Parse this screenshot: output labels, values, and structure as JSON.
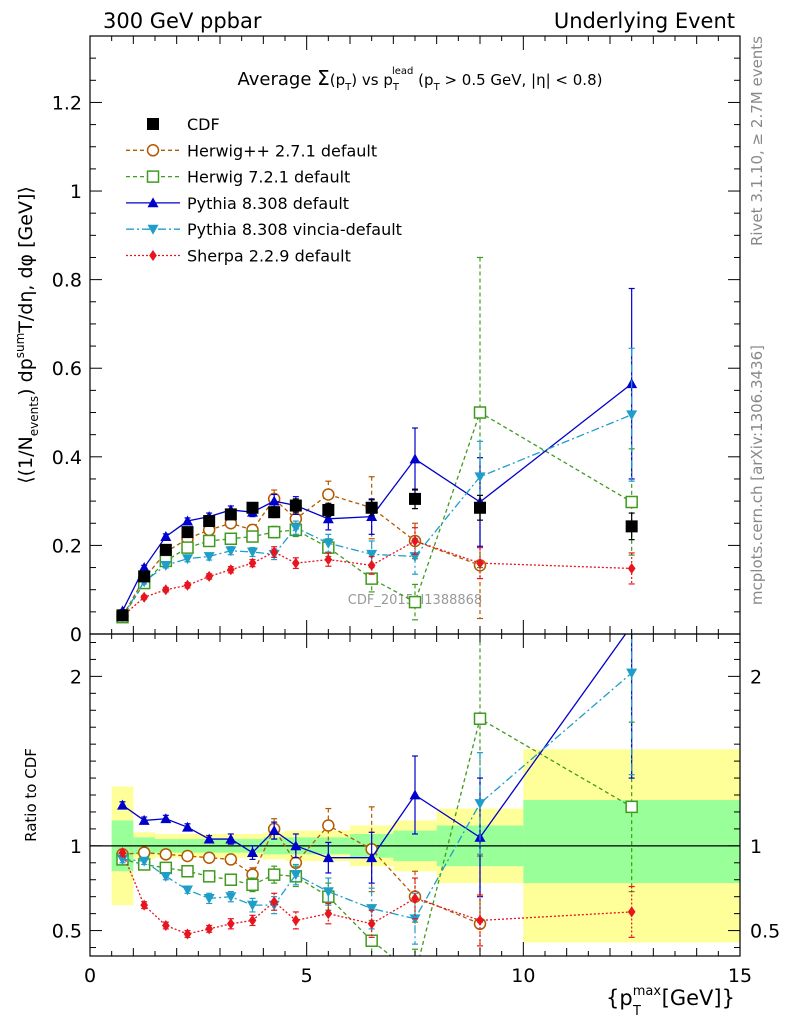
{
  "header": {
    "left": "300 GeV ppbar",
    "right": "Underlying Event"
  },
  "side_labels": {
    "rivet": "Rivet 3.1.10, ≥ 2.7M events",
    "mcplots": "mcplots.cern.ch [arXiv:1306.3436]"
  },
  "chart_data": [
    {
      "type": "line",
      "title_parts": {
        "a": "Average ",
        "sigma": "Σ",
        "b": "(p",
        "b_sub": "T",
        "c": ") vs p",
        "c_sub": "T",
        "c_sup": "lead",
        "d": " (p",
        "d_sub": "T",
        "e": " > 0.5 GeV, |η| < 0.8)"
      },
      "ylabel_parts": {
        "a": "⟨(1/N",
        "a_sub": "events",
        "b": ") dp",
        "b_sup": "sum",
        "c": "T",
        "d": "/dη, dφ [GeV]⟩"
      },
      "xlim": [
        0,
        15
      ],
      "ylim": [
        0,
        1.35
      ],
      "yticks": [
        0,
        0.2,
        0.4,
        0.6,
        0.8,
        1,
        1.2
      ],
      "ytick_labels": [
        "0",
        "0.2",
        "0.4",
        "0.6",
        "0.8",
        "1",
        "1.2"
      ],
      "watermark": "CDF_2015_I1388868",
      "series": [
        {
          "name": "CDF",
          "color": "#000000",
          "marker": "square-filled",
          "x": [
            0.75,
            1.25,
            1.75,
            2.25,
            2.75,
            3.25,
            3.75,
            4.25,
            4.75,
            5.5,
            6.5,
            7.5,
            9,
            12.5
          ],
          "y": [
            0.042,
            0.13,
            0.19,
            0.23,
            0.255,
            0.27,
            0.285,
            0.275,
            0.29,
            0.28,
            0.285,
            0.305,
            0.285,
            0.243
          ],
          "err": [
            0.004,
            0.006,
            0.007,
            0.008,
            0.009,
            0.01,
            0.011,
            0.012,
            0.015,
            0.015,
            0.018,
            0.022,
            0.028,
            0.03
          ]
        },
        {
          "name": "Herwig++ 2.7.1 default",
          "color": "#b35900",
          "marker": "circle-open",
          "dash": "4,3",
          "x": [
            0.75,
            1.25,
            1.75,
            2.25,
            2.75,
            3.25,
            3.75,
            4.25,
            4.75,
            5.5,
            6.5,
            7.5,
            9
          ],
          "y": [
            0.04,
            0.125,
            0.185,
            0.215,
            0.235,
            0.25,
            0.235,
            0.305,
            0.26,
            0.315,
            0.285,
            0.21,
            0.155
          ],
          "err": [
            0.003,
            0.005,
            0.006,
            0.007,
            0.008,
            0.01,
            0.012,
            0.02,
            0.025,
            0.03,
            0.07,
            0.04,
            0.12
          ]
        },
        {
          "name": "Herwig 7.2.1 default",
          "color": "#3f9b1f",
          "marker": "square-open",
          "dash": "4,3",
          "x": [
            0.75,
            1.25,
            1.75,
            2.25,
            2.75,
            3.25,
            3.75,
            4.25,
            4.75,
            5.5,
            6.5,
            7.5,
            9,
            12.5
          ],
          "y": [
            0.038,
            0.115,
            0.165,
            0.195,
            0.21,
            0.215,
            0.22,
            0.23,
            0.235,
            0.195,
            0.125,
            0.072,
            0.5,
            0.298
          ],
          "err": [
            0.003,
            0.005,
            0.006,
            0.007,
            0.008,
            0.009,
            0.011,
            0.013,
            0.015,
            0.02,
            0.03,
            0.04,
            0.35,
            0.12
          ]
        },
        {
          "name": "Pythia 8.308 default",
          "color": "#0000cc",
          "marker": "triangle-up-filled",
          "dash": "",
          "x": [
            0.75,
            1.25,
            1.75,
            2.25,
            2.75,
            3.25,
            3.75,
            4.25,
            4.75,
            5.5,
            6.5,
            7.5,
            9,
            12.5
          ],
          "y": [
            0.052,
            0.15,
            0.22,
            0.255,
            0.265,
            0.28,
            0.275,
            0.3,
            0.29,
            0.26,
            0.265,
            0.395,
            0.298,
            0.565
          ],
          "err": [
            0.003,
            0.005,
            0.006,
            0.007,
            0.008,
            0.009,
            0.01,
            0.015,
            0.02,
            0.025,
            0.04,
            0.07,
            0.1,
            0.215
          ]
        },
        {
          "name": "Pythia 8.308 vincia-default",
          "color": "#1e9ec8",
          "marker": "triangle-down-filled",
          "dash": "8,3,2,3",
          "x": [
            0.75,
            1.25,
            1.75,
            2.25,
            2.75,
            3.25,
            3.75,
            4.25,
            4.75,
            5.5,
            6.5,
            7.5,
            9,
            12.5
          ],
          "y": [
            0.04,
            0.118,
            0.155,
            0.17,
            0.175,
            0.188,
            0.185,
            0.18,
            0.24,
            0.205,
            0.18,
            0.175,
            0.355,
            0.495
          ],
          "err": [
            0.003,
            0.005,
            0.006,
            0.007,
            0.008,
            0.009,
            0.01,
            0.012,
            0.015,
            0.02,
            0.03,
            0.04,
            0.08,
            0.15
          ]
        },
        {
          "name": "Sherpa 2.2.9 default",
          "color": "#e8141e",
          "marker": "diamond-filled",
          "dash": "2,2",
          "x": [
            0.75,
            1.25,
            1.75,
            2.25,
            2.75,
            3.25,
            3.75,
            4.25,
            4.75,
            5.5,
            6.5,
            7.5,
            9,
            12.5
          ],
          "y": [
            0.04,
            0.083,
            0.1,
            0.11,
            0.13,
            0.145,
            0.16,
            0.185,
            0.16,
            0.168,
            0.155,
            0.21,
            0.16,
            0.148
          ],
          "err": [
            0.003,
            0.004,
            0.005,
            0.006,
            0.006,
            0.007,
            0.008,
            0.012,
            0.012,
            0.015,
            0.02,
            0.03,
            0.035,
            0.035
          ]
        }
      ]
    },
    {
      "type": "line",
      "ylabel": "Ratio to CDF",
      "xlabel_parts": {
        "a": "p",
        "a_sup": "max",
        "a_sub": "T",
        "b": " [GeV]"
      },
      "xlim": [
        0,
        15
      ],
      "ylim": [
        0.35,
        2.25
      ],
      "xticks": [
        0,
        5,
        10,
        15
      ],
      "xtick_labels": [
        "0",
        "5",
        "10",
        "15"
      ],
      "yticks": [
        0.5,
        1,
        2
      ],
      "ytick_labels": [
        "0.5",
        "1",
        "2"
      ],
      "bands": {
        "edges": [
          0.5,
          1,
          1.5,
          2,
          2.5,
          3,
          3.5,
          4,
          4.5,
          5,
          6,
          7,
          8,
          10,
          15
        ],
        "yellow_lo": [
          0.65,
          0.92,
          0.93,
          0.93,
          0.93,
          0.93,
          0.93,
          0.92,
          0.91,
          0.91,
          0.88,
          0.85,
          0.78,
          0.43
        ],
        "yellow_hi": [
          1.35,
          1.08,
          1.07,
          1.07,
          1.07,
          1.07,
          1.07,
          1.08,
          1.09,
          1.09,
          1.12,
          1.15,
          1.22,
          1.57
        ],
        "green_lo": [
          0.85,
          0.95,
          0.96,
          0.96,
          0.96,
          0.96,
          0.96,
          0.95,
          0.95,
          0.95,
          0.93,
          0.91,
          0.88,
          0.78
        ],
        "green_hi": [
          1.15,
          1.05,
          1.04,
          1.04,
          1.04,
          1.04,
          1.04,
          1.05,
          1.05,
          1.05,
          1.07,
          1.09,
          1.12,
          1.27
        ]
      },
      "series": [
        {
          "name": "Herwig++ 2.7.1 default",
          "color": "#b35900",
          "marker": "circle-open",
          "dash": "4,3",
          "x": [
            0.75,
            1.25,
            1.75,
            2.25,
            2.75,
            3.25,
            3.75,
            4.25,
            4.75,
            5.5,
            6.5,
            7.5,
            9
          ],
          "y": [
            0.95,
            0.96,
            0.95,
            0.94,
            0.93,
            0.92,
            0.83,
            1.1,
            0.9,
            1.12,
            0.98,
            0.7,
            0.54
          ],
          "err": [
            0.02,
            0.02,
            0.02,
            0.02,
            0.02,
            0.03,
            0.04,
            0.06,
            0.08,
            0.1,
            0.25,
            0.15,
            0.4
          ]
        },
        {
          "name": "Herwig 7.2.1 default",
          "color": "#3f9b1f",
          "marker": "square-open",
          "dash": "4,3",
          "x": [
            0.75,
            1.25,
            1.75,
            2.25,
            2.75,
            3.25,
            3.75,
            4.25,
            4.75,
            5.5,
            6.5,
            7.5,
            9,
            12.5
          ],
          "y": [
            0.92,
            0.89,
            0.87,
            0.85,
            0.82,
            0.8,
            0.77,
            0.83,
            0.82,
            0.7,
            0.44,
            0.24,
            1.75,
            1.23
          ],
          "err": [
            0.02,
            0.02,
            0.02,
            0.02,
            0.02,
            0.03,
            0.04,
            0.05,
            0.06,
            0.08,
            0.12,
            0.15,
            1.2,
            0.5
          ]
        },
        {
          "name": "Pythia 8.308 default",
          "color": "#0000cc",
          "marker": "triangle-up-filled",
          "dash": "",
          "x": [
            0.75,
            1.25,
            1.75,
            2.25,
            2.75,
            3.25,
            3.75,
            4.25,
            4.75,
            5.5,
            6.5,
            7.5,
            9,
            12.5
          ],
          "y": [
            1.24,
            1.15,
            1.16,
            1.11,
            1.04,
            1.04,
            0.96,
            1.09,
            1.0,
            0.93,
            0.93,
            1.3,
            1.05,
            2.3
          ],
          "err": [
            0.02,
            0.02,
            0.02,
            0.02,
            0.02,
            0.03,
            0.04,
            0.05,
            0.07,
            0.09,
            0.15,
            0.23,
            0.35,
            0.9
          ]
        },
        {
          "name": "Pythia 8.308 vincia-default",
          "color": "#1e9ec8",
          "marker": "triangle-down-filled",
          "dash": "8,3,2,3",
          "x": [
            0.75,
            1.25,
            1.75,
            2.25,
            2.75,
            3.25,
            3.75,
            4.25,
            4.75,
            5.5,
            6.5,
            7.5,
            9,
            12.5
          ],
          "y": [
            0.92,
            0.91,
            0.82,
            0.74,
            0.69,
            0.7,
            0.65,
            0.65,
            0.83,
            0.73,
            0.63,
            0.57,
            1.25,
            2.02
          ],
          "err": [
            0.02,
            0.02,
            0.02,
            0.02,
            0.03,
            0.03,
            0.04,
            0.05,
            0.06,
            0.08,
            0.12,
            0.15,
            0.3,
            0.6
          ]
        },
        {
          "name": "Sherpa 2.2.9 default",
          "color": "#e8141e",
          "marker": "diamond-filled",
          "dash": "2,2",
          "x": [
            0.75,
            1.25,
            1.75,
            2.25,
            2.75,
            3.25,
            3.75,
            4.25,
            4.75,
            5.5,
            6.5,
            7.5,
            9,
            12.5
          ],
          "y": [
            0.96,
            0.65,
            0.53,
            0.48,
            0.51,
            0.54,
            0.56,
            0.67,
            0.56,
            0.6,
            0.54,
            0.69,
            0.56,
            0.61
          ],
          "err": [
            0.02,
            0.02,
            0.02,
            0.02,
            0.02,
            0.03,
            0.03,
            0.05,
            0.05,
            0.06,
            0.08,
            0.12,
            0.15,
            0.15
          ]
        }
      ]
    }
  ]
}
